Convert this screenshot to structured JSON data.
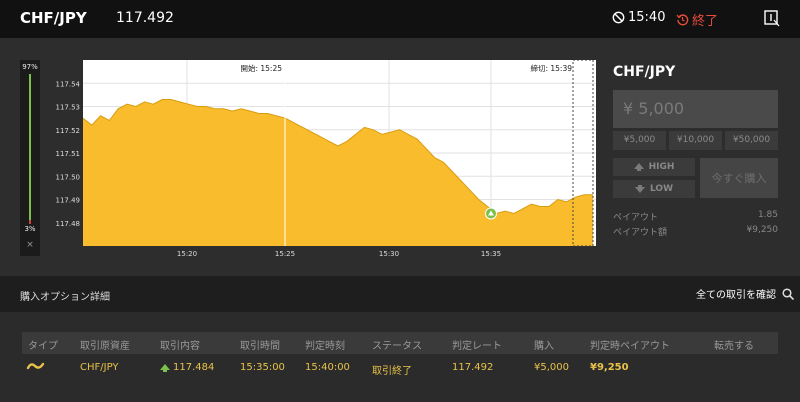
{
  "header": {
    "symbol": "CHF/JPY",
    "rate": "117.492",
    "time": "15:40",
    "status": "終了"
  },
  "gauge": {
    "top_label": "97%",
    "bottom_label": "3%",
    "close": "×",
    "up_fraction": 0.97
  },
  "chart_data": {
    "type": "area",
    "open_label": "開始: 15:25",
    "close_label": "締切: 15:39",
    "y_ticks": [
      "117.54",
      "117.53",
      "117.52",
      "117.51",
      "117.50",
      "117.49",
      "117.48"
    ],
    "x_ticks": [
      "15:20",
      "15:25",
      "15:30",
      "15:35"
    ],
    "ylim": [
      117.47,
      117.55
    ],
    "entry_rate": 117.484,
    "values": [
      117.525,
      117.522,
      117.526,
      117.524,
      117.529,
      117.531,
      117.53,
      117.532,
      117.531,
      117.533,
      117.533,
      117.532,
      117.531,
      117.53,
      117.53,
      117.529,
      117.529,
      117.528,
      117.529,
      117.528,
      117.527,
      117.527,
      117.526,
      117.525,
      117.523,
      117.521,
      117.519,
      117.517,
      117.515,
      117.513,
      117.515,
      117.518,
      117.521,
      117.52,
      117.518,
      117.519,
      117.52,
      117.518,
      117.516,
      117.512,
      117.508,
      117.506,
      117.502,
      117.498,
      117.494,
      117.49,
      117.487,
      117.484,
      117.485,
      117.484,
      117.486,
      117.488,
      117.487,
      117.487,
      117.49,
      117.489,
      117.491,
      117.492,
      117.492
    ]
  },
  "order_panel": {
    "title": "CHF/JPY",
    "amount_placeholder": "¥ 5,000",
    "presets": [
      "¥5,000",
      "¥10,000",
      "¥50,000"
    ],
    "high_label": "HIGH",
    "low_label": "LOW",
    "buy_now": "今すぐ購入",
    "payout_label": "ペイアウト",
    "payout_value": "1.85",
    "payout_amount_label": "ペイアウト額",
    "payout_amount_value": "¥9,250"
  },
  "details": {
    "title": "購入オプション詳細",
    "confirm_all": "全ての取引を確認"
  },
  "table": {
    "headers": [
      "タイプ",
      "取引原資産",
      "取引内容",
      "取引時間",
      "判定時刻",
      "ステータス",
      "判定レート",
      "購入",
      "判定時ペイアウト",
      "転売する"
    ],
    "row": {
      "asset": "CHF/JPY",
      "content": "117.484",
      "trade_time": "15:35:00",
      "judge_time": "15:40:00",
      "status": "取引終了",
      "judge_rate": "117.492",
      "purchase": "¥5,000",
      "payout": "¥9,250"
    }
  },
  "colors": {
    "accent": "#f9bc2c",
    "up": "#7cc04b",
    "down": "#d0413b",
    "ended": "#e74c3c"
  }
}
